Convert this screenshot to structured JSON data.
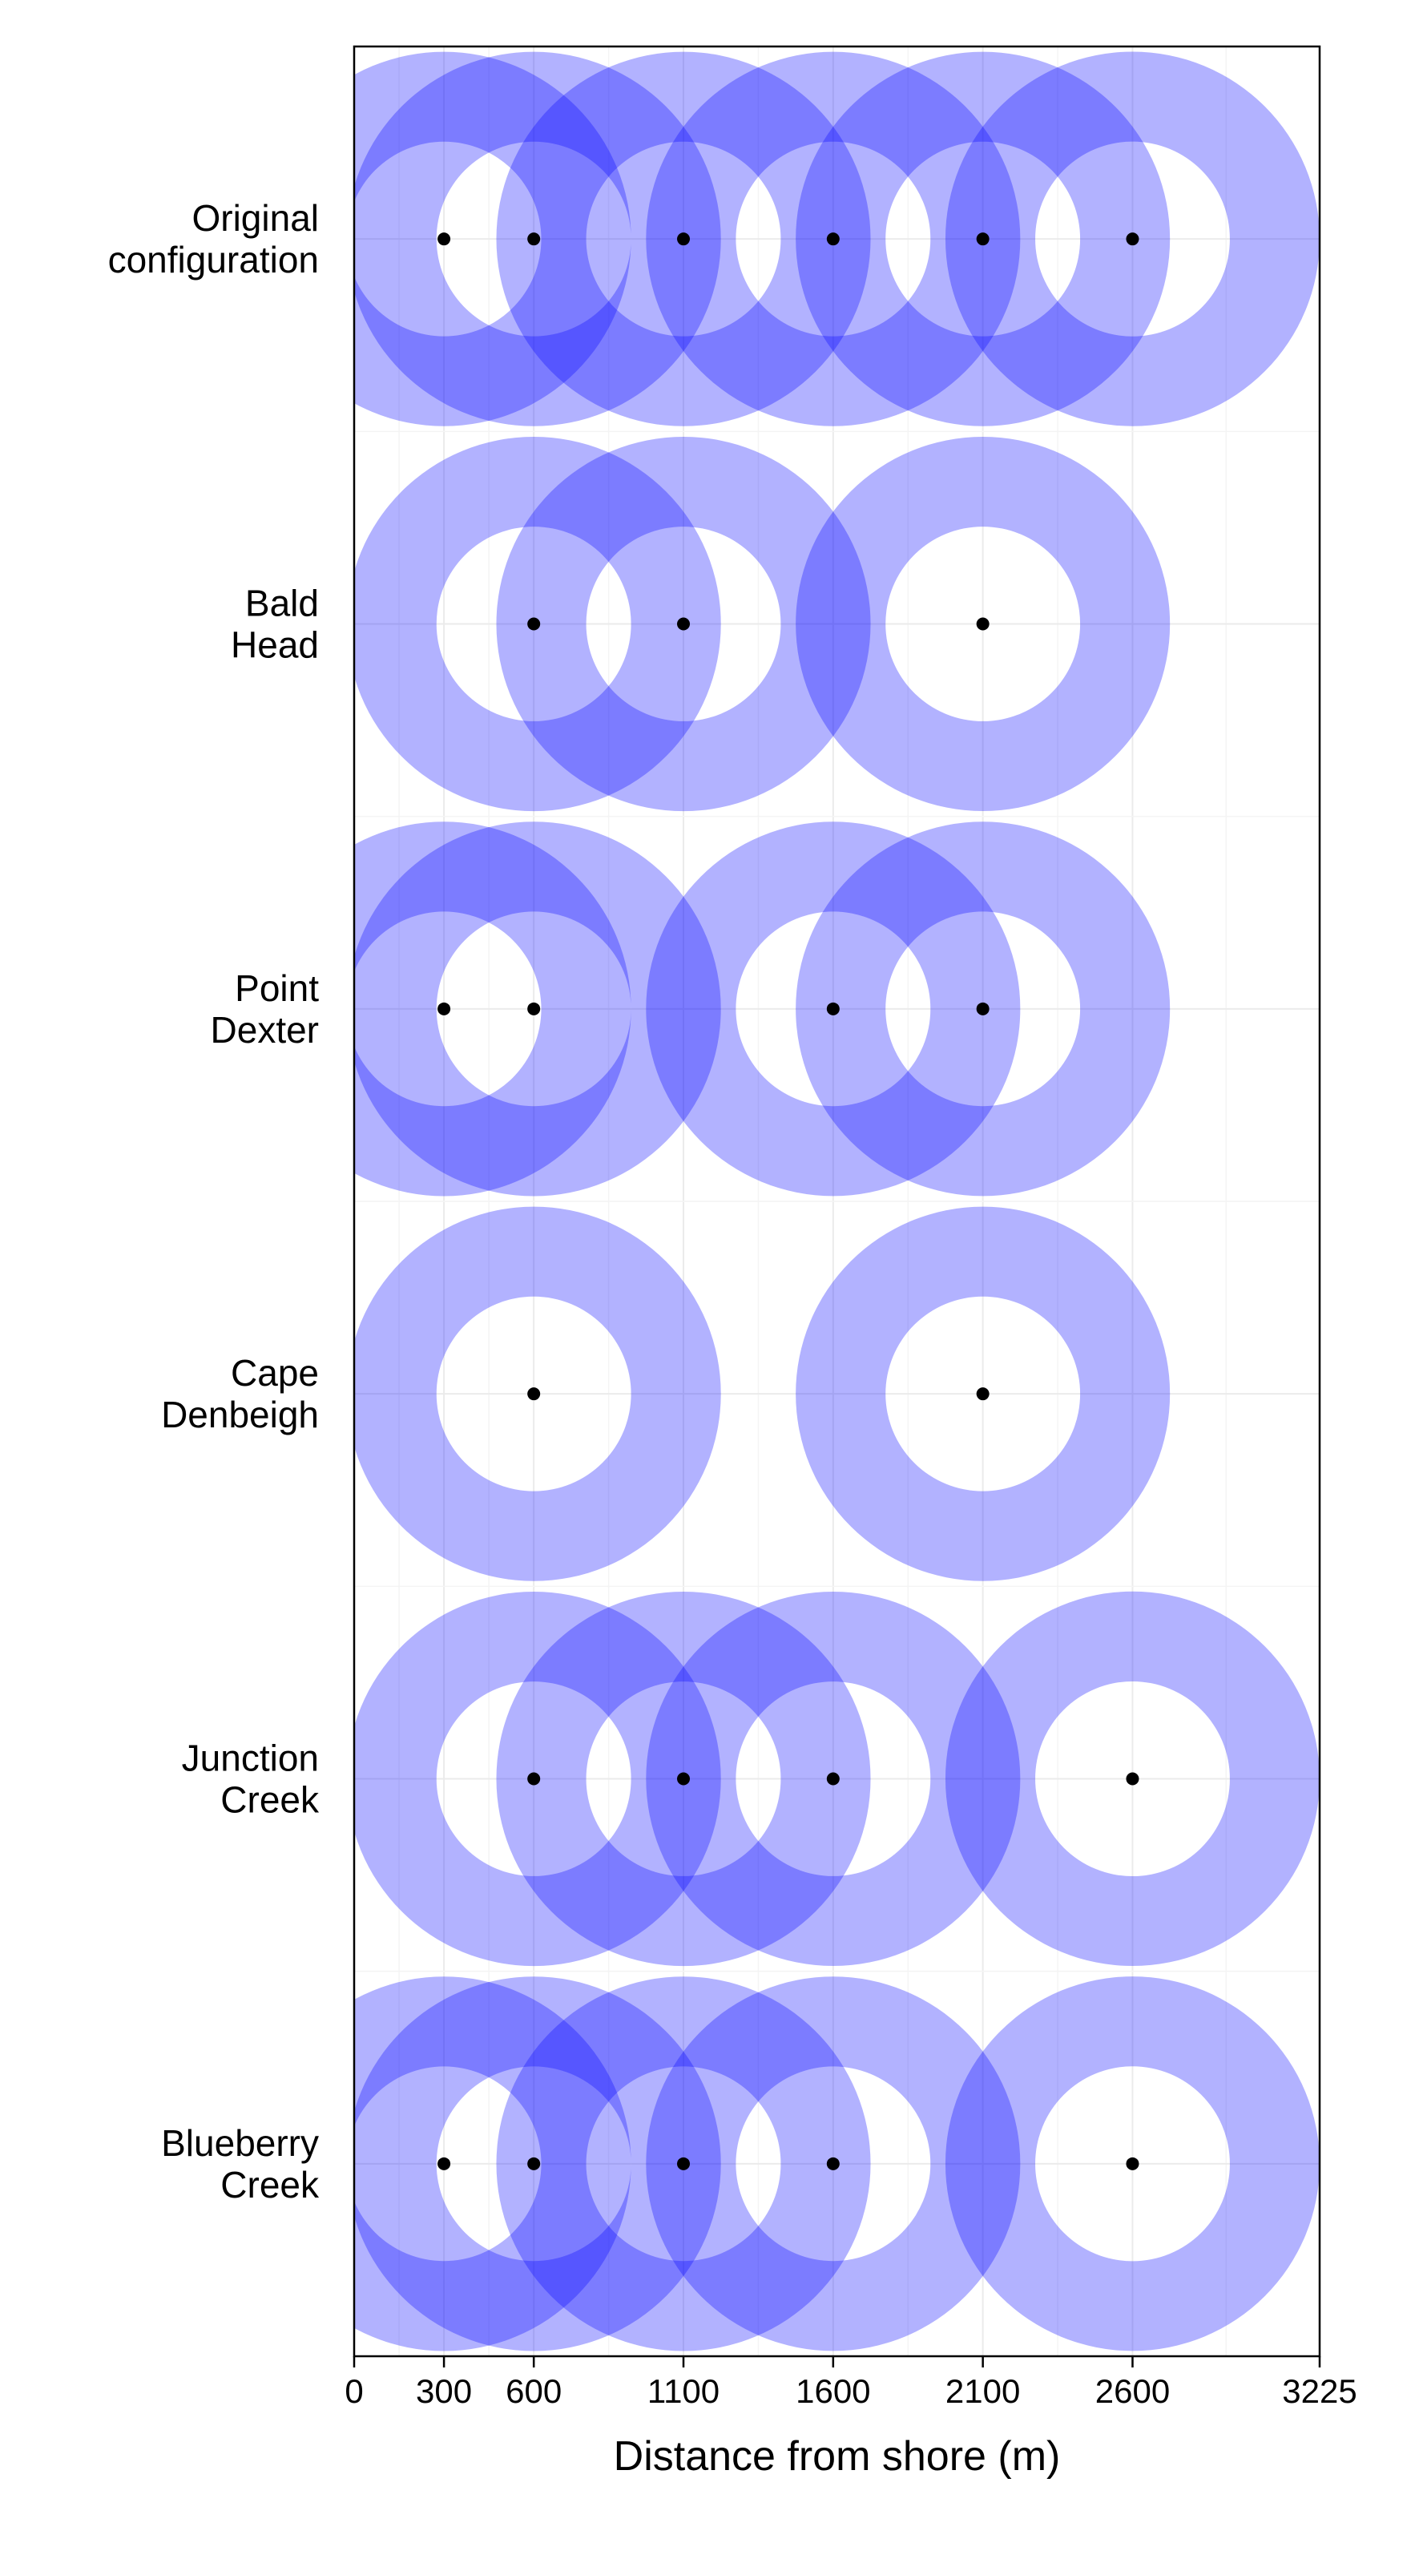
{
  "chart_data": {
    "type": "scatter",
    "xlabel": "Distance from shore (m)",
    "ylabel": "",
    "xlim": [
      0,
      3225
    ],
    "x_ticks": [
      0,
      300,
      600,
      1100,
      1600,
      2100,
      2600,
      3225
    ],
    "x_tick_labels": [
      "0",
      "300",
      "600",
      "1100",
      "1600",
      "2100",
      "2600",
      "3225"
    ],
    "rows": [
      {
        "label_lines": [
          "Original",
          "configuration"
        ],
        "points": [
          300,
          600,
          1100,
          1600,
          2100,
          2600
        ]
      },
      {
        "label_lines": [
          "Bald",
          "Head"
        ],
        "points": [
          600,
          1100,
          2100
        ]
      },
      {
        "label_lines": [
          "Point",
          "Dexter"
        ],
        "points": [
          300,
          600,
          1600,
          2100
        ]
      },
      {
        "label_lines": [
          "Cape",
          "Denbeigh"
        ],
        "points": [
          600,
          2100
        ]
      },
      {
        "label_lines": [
          "Junction",
          "Creek"
        ],
        "points": [
          600,
          1100,
          1600,
          2600
        ]
      },
      {
        "label_lines": [
          "Blueberry",
          "Creek"
        ],
        "points": [
          300,
          600,
          1100,
          1600,
          2600
        ]
      }
    ],
    "ring_inner_radius": 325,
    "ring_outer_radius": 625,
    "ring_color": "#0000ff",
    "ring_opacity": 0.3,
    "point_color": "#000000",
    "grid": true,
    "grid_color": "#ebebeb"
  }
}
